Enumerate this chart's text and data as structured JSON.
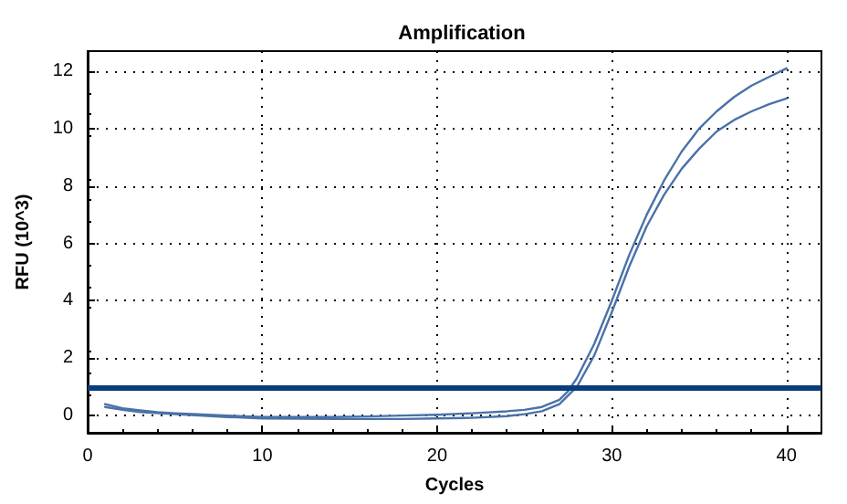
{
  "chart_data": {
    "type": "line",
    "title": "Amplification",
    "xlabel": "Cycles",
    "ylabel": "RFU (10^3)",
    "xlim": [
      0,
      42
    ],
    "xticks": [
      0,
      10,
      20,
      30,
      40
    ],
    "ylim": [
      -0.6,
      12.7
    ],
    "yticks": [
      0,
      2,
      4,
      6,
      8,
      10,
      12
    ],
    "grid": true,
    "marker": "none",
    "line_style": "solid",
    "series": [
      {
        "color": "#4a72a8",
        "x": [
          1,
          2,
          3,
          4,
          5,
          6,
          8,
          10,
          12,
          14,
          16,
          18,
          20,
          22,
          24,
          25,
          26,
          27,
          27.5,
          28,
          29,
          30,
          31,
          32,
          33,
          34,
          35,
          36,
          37,
          38,
          39,
          40
        ],
        "values": [
          0.4,
          0.25,
          0.18,
          0.12,
          0.08,
          0.05,
          0.0,
          -0.05,
          -0.05,
          -0.05,
          -0.03,
          0.0,
          0.03,
          0.08,
          0.15,
          0.2,
          0.3,
          0.55,
          0.85,
          1.3,
          2.5,
          4.0,
          5.6,
          7.0,
          8.2,
          9.2,
          10.0,
          10.6,
          11.1,
          11.5,
          11.8,
          12.1
        ]
      },
      {
        "color": "#4a72a8",
        "x": [
          1,
          2,
          3,
          5,
          8,
          10,
          14,
          18,
          20,
          22,
          24,
          25,
          26,
          27,
          28,
          29,
          30,
          31,
          32,
          33,
          34,
          35,
          36,
          37,
          38,
          39,
          40
        ],
        "values": [
          0.3,
          0.2,
          0.12,
          0.05,
          -0.05,
          -0.1,
          -0.12,
          -0.12,
          -0.1,
          -0.08,
          -0.02,
          0.05,
          0.15,
          0.4,
          1.0,
          2.1,
          3.6,
          5.2,
          6.6,
          7.7,
          8.6,
          9.3,
          9.9,
          10.3,
          10.6,
          10.85,
          11.05
        ]
      }
    ],
    "ref_lines": [
      {
        "axis": "y",
        "value": 1,
        "color": "#0a3d7a",
        "line_style": "solid"
      }
    ]
  }
}
